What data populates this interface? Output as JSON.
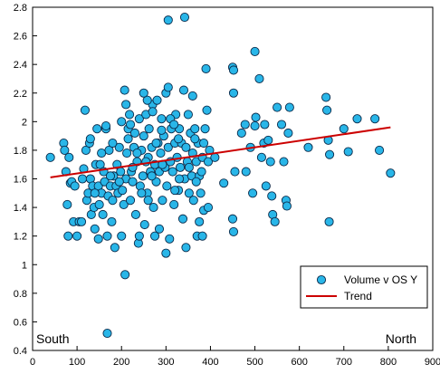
{
  "chart_data": {
    "type": "scatter",
    "xlim": [
      0,
      900
    ],
    "ylim": [
      0.4,
      2.8
    ],
    "x_ticks": [
      0,
      100,
      200,
      300,
      400,
      500,
      600,
      700,
      800,
      900
    ],
    "y_ticks": [
      0.4,
      0.6,
      0.8,
      1,
      1.2,
      1.4,
      1.6,
      1.8,
      2,
      2.2,
      2.4,
      2.6,
      2.8
    ],
    "grid": false,
    "legend_position": "bottom-right",
    "axis_annotations": {
      "left": "South",
      "right": "North"
    },
    "colors": {
      "point_fill": "#29b6e8",
      "point_stroke": "#0a2a4a",
      "trend": "#cc0000"
    },
    "series": [
      {
        "name": "Volume v OS Y",
        "points": [
          [
            40,
            1.75
          ],
          [
            70,
            1.85
          ],
          [
            72,
            1.8
          ],
          [
            75,
            1.65
          ],
          [
            78,
            1.42
          ],
          [
            80,
            1.2
          ],
          [
            82,
            1.75
          ],
          [
            85,
            1.57
          ],
          [
            88,
            1.58
          ],
          [
            92,
            1.3
          ],
          [
            95,
            1.55
          ],
          [
            100,
            1.2
          ],
          [
            105,
            1.3
          ],
          [
            110,
            1.3
          ],
          [
            112,
            1.6
          ],
          [
            115,
            1.67
          ],
          [
            118,
            2.08
          ],
          [
            120,
            1.8
          ],
          [
            122,
            1.45
          ],
          [
            125,
            1.5
          ],
          [
            128,
            1.85
          ],
          [
            130,
            1.6
          ],
          [
            132,
            1.35
          ],
          [
            135,
            1.55
          ],
          [
            138,
            1.4
          ],
          [
            140,
            1.25
          ],
          [
            142,
            1.7
          ],
          [
            145,
            1.95
          ],
          [
            148,
            1.55
          ],
          [
            150,
            1.42
          ],
          [
            152,
            1.7
          ],
          [
            155,
            1.5
          ],
          [
            158,
            1.35
          ],
          [
            160,
            1.65
          ],
          [
            162,
            1.58
          ],
          [
            165,
            1.95
          ],
          [
            168,
            1.2
          ],
          [
            170,
            1.48
          ],
          [
            172,
            1.8
          ],
          [
            175,
            1.55
          ],
          [
            178,
            1.3
          ],
          [
            180,
            1.45
          ],
          [
            182,
            1.62
          ],
          [
            185,
            1.12
          ],
          [
            188,
            1.55
          ],
          [
            190,
            1.7
          ],
          [
            192,
            1.5
          ],
          [
            195,
            1.82
          ],
          [
            198,
            1.65
          ],
          [
            200,
            2.0
          ],
          [
            202,
            1.52
          ],
          [
            205,
            1.42
          ],
          [
            207,
            2.22
          ],
          [
            210,
            1.6
          ],
          [
            212,
            1.78
          ],
          [
            215,
            1.95
          ],
          [
            218,
            2.05
          ],
          [
            220,
            1.45
          ],
          [
            222,
            1.65
          ],
          [
            225,
            1.58
          ],
          [
            228,
            1.82
          ],
          [
            230,
            1.92
          ],
          [
            232,
            1.35
          ],
          [
            235,
            1.72
          ],
          [
            238,
            1.15
          ],
          [
            240,
            2.02
          ],
          [
            242,
            1.55
          ],
          [
            245,
            1.8
          ],
          [
            248,
            1.62
          ],
          [
            250,
            1.9
          ],
          [
            252,
            1.28
          ],
          [
            255,
            2.05
          ],
          [
            258,
            1.5
          ],
          [
            260,
            1.75
          ],
          [
            262,
            1.95
          ],
          [
            265,
            1.65
          ],
          [
            268,
            1.82
          ],
          [
            270,
            2.12
          ],
          [
            272,
            1.4
          ],
          [
            275,
            1.7
          ],
          [
            278,
            1.58
          ],
          [
            280,
            2.15
          ],
          [
            282,
            1.85
          ],
          [
            285,
            1.65
          ],
          [
            288,
            1.78
          ],
          [
            290,
            2.02
          ],
          [
            292,
            1.45
          ],
          [
            295,
            1.9
          ],
          [
            298,
            1.68
          ],
          [
            300,
            2.2
          ],
          [
            302,
            1.55
          ],
          [
            305,
            1.82
          ],
          [
            308,
            1.18
          ],
          [
            310,
            1.72
          ],
          [
            312,
            1.95
          ],
          [
            315,
            1.65
          ],
          [
            318,
            1.42
          ],
          [
            320,
            1.85
          ],
          [
            322,
            2.05
          ],
          [
            325,
            1.75
          ],
          [
            328,
            1.52
          ],
          [
            330,
            1.95
          ],
          [
            332,
            1.68
          ],
          [
            335,
            1.85
          ],
          [
            338,
            1.32
          ],
          [
            340,
            2.22
          ],
          [
            342,
            1.6
          ],
          [
            345,
            1.82
          ],
          [
            348,
            1.72
          ],
          [
            350,
            2.05
          ],
          [
            352,
            1.5
          ],
          [
            355,
            1.92
          ],
          [
            358,
            1.62
          ],
          [
            360,
            1.78
          ],
          [
            362,
            1.45
          ],
          [
            365,
            1.95
          ],
          [
            368,
            1.72
          ],
          [
            370,
            1.2
          ],
          [
            372,
            1.85
          ],
          [
            375,
            1.62
          ],
          [
            378,
            1.5
          ],
          [
            380,
            1.65
          ],
          [
            382,
            1.75
          ],
          [
            385,
            1.38
          ],
          [
            388,
            1.95
          ],
          [
            390,
            2.37
          ],
          [
            395,
            1.72
          ],
          [
            398,
            1.8
          ],
          [
            305,
            2.71
          ],
          [
            342,
            2.73
          ],
          [
            300,
            1.08
          ],
          [
            208,
            0.93
          ],
          [
            168,
            0.52
          ],
          [
            200,
            1.2
          ],
          [
            148,
            1.18
          ],
          [
            240,
            1.2
          ],
          [
            275,
            1.2
          ],
          [
            382,
            1.2
          ],
          [
            305,
            2.24
          ],
          [
            258,
            2.15
          ],
          [
            410,
            1.75
          ],
          [
            430,
            1.57
          ],
          [
            450,
            2.38
          ],
          [
            452,
            2.36
          ],
          [
            452,
            2.2
          ],
          [
            455,
            1.65
          ],
          [
            470,
            1.92
          ],
          [
            478,
            1.98
          ],
          [
            480,
            1.65
          ],
          [
            490,
            1.82
          ],
          [
            495,
            1.5
          ],
          [
            500,
            2.49
          ],
          [
            502,
            2.03
          ],
          [
            510,
            2.3
          ],
          [
            515,
            1.75
          ],
          [
            520,
            1.85
          ],
          [
            522,
            1.98
          ],
          [
            525,
            1.55
          ],
          [
            530,
            1.87
          ],
          [
            535,
            1.72
          ],
          [
            538,
            1.48
          ],
          [
            540,
            1.35
          ],
          [
            545,
            1.3
          ],
          [
            550,
            2.1
          ],
          [
            560,
            1.98
          ],
          [
            565,
            1.72
          ],
          [
            570,
            1.45
          ],
          [
            572,
            1.41
          ],
          [
            575,
            1.92
          ],
          [
            578,
            2.1
          ],
          [
            450,
            1.32
          ],
          [
            452,
            1.23
          ],
          [
            500,
            1.97
          ],
          [
            620,
            1.82
          ],
          [
            660,
            2.17
          ],
          [
            662,
            2.08
          ],
          [
            665,
            1.87
          ],
          [
            667,
            1.3
          ],
          [
            668,
            1.77
          ],
          [
            700,
            1.95
          ],
          [
            710,
            1.79
          ],
          [
            730,
            2.02
          ],
          [
            770,
            2.02
          ],
          [
            780,
            1.8
          ],
          [
            805,
            1.64
          ],
          [
            165,
            1.97
          ],
          [
            180,
            1.85
          ],
          [
            220,
            1.98
          ],
          [
            250,
            2.2
          ],
          [
            270,
            2.07
          ],
          [
            290,
            1.94
          ],
          [
            310,
            2.02
          ],
          [
            330,
            1.6
          ],
          [
            360,
            2.18
          ],
          [
            395,
            1.4
          ],
          [
            215,
            1.88
          ],
          [
            235,
            1.78
          ],
          [
            260,
            1.45
          ],
          [
            285,
            1.25
          ],
          [
            320,
            1.52
          ],
          [
            345,
            1.12
          ],
          [
            365,
            1.88
          ],
          [
            375,
            1.3
          ],
          [
            130,
            1.88
          ],
          [
            140,
            1.5
          ],
          [
            155,
            1.78
          ],
          [
            175,
            1.62
          ],
          [
            195,
            1.58
          ],
          [
            210,
            2.12
          ],
          [
            225,
            1.68
          ],
          [
            245,
            1.5
          ],
          [
            255,
            1.72
          ],
          [
            268,
            1.62
          ],
          [
            278,
            1.85
          ],
          [
            292,
            1.7
          ],
          [
            318,
            1.98
          ],
          [
            328,
            1.88
          ],
          [
            352,
            1.68
          ],
          [
            368,
            1.58
          ],
          [
            385,
            1.85
          ],
          [
            392,
            2.08
          ]
        ]
      },
      {
        "name": "Trend",
        "line": [
          [
            40,
            1.61
          ],
          [
            805,
            1.96
          ]
        ]
      }
    ]
  }
}
